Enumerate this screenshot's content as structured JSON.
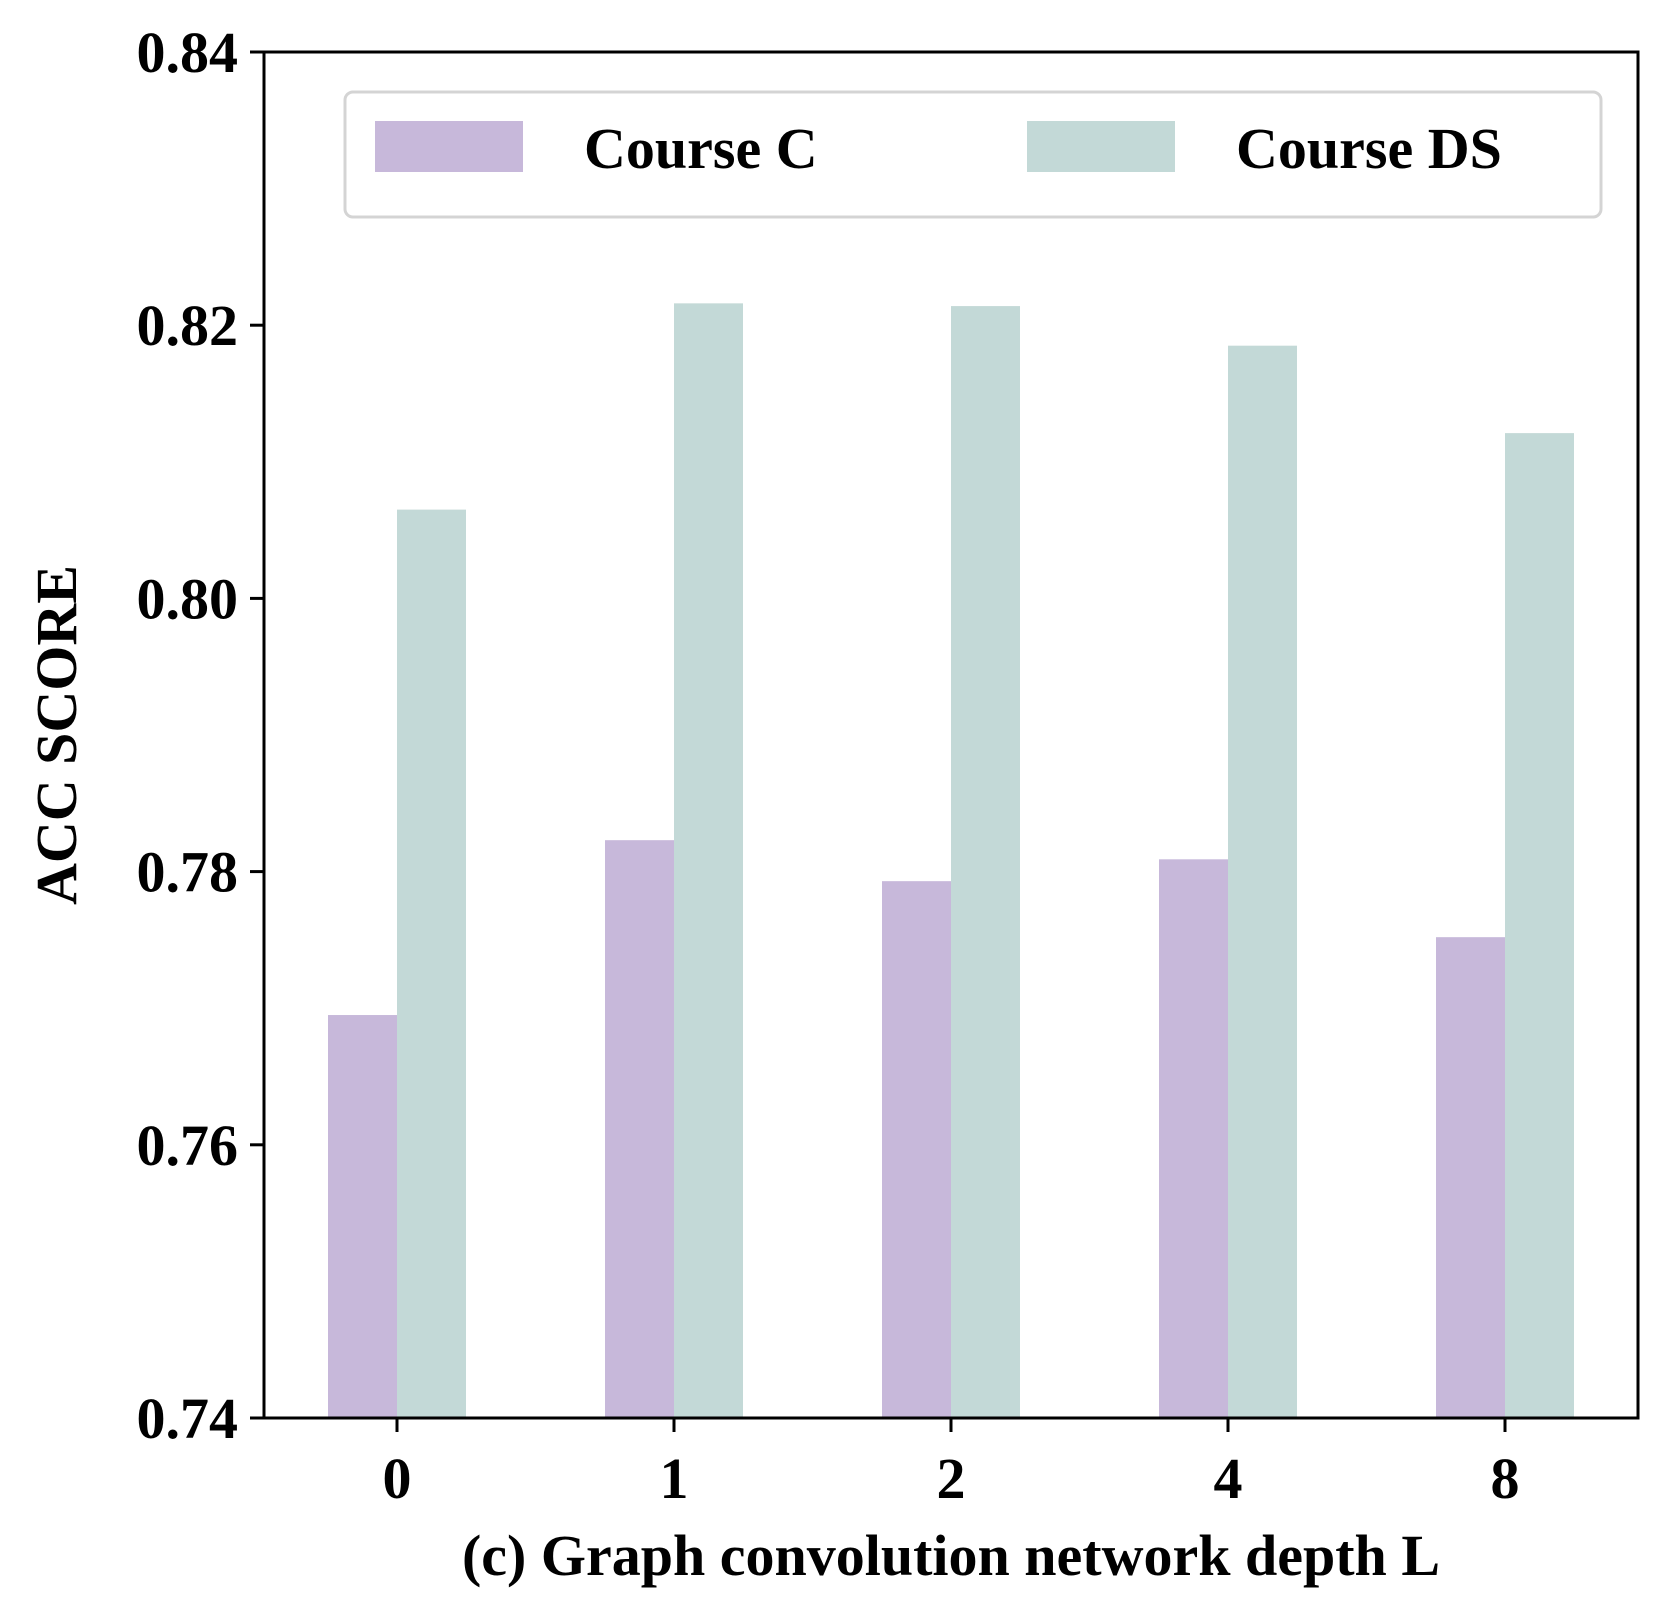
{
  "chart_data": {
    "type": "bar",
    "title": "",
    "xlabel": "(c) Graph convolution network depth L",
    "ylabel": "ACC  SCORE",
    "categories": [
      "0",
      "1",
      "2",
      "4",
      "8"
    ],
    "ylim": [
      0.74,
      0.84
    ],
    "yticks": [
      "0.74",
      "0.76",
      "0.78",
      "0.80",
      "0.82",
      "0.84"
    ],
    "series": [
      {
        "name": "Course C",
        "color": "#c7b8da",
        "values": [
          0.7695,
          0.7823,
          0.7793,
          0.7809,
          0.7752
        ]
      },
      {
        "name": "Course DS",
        "color": "#c3d9d7",
        "values": [
          0.8065,
          0.8216,
          0.8214,
          0.8185,
          0.8121
        ]
      }
    ],
    "legend": {
      "position": "top",
      "columns": 2
    },
    "grid": false
  }
}
